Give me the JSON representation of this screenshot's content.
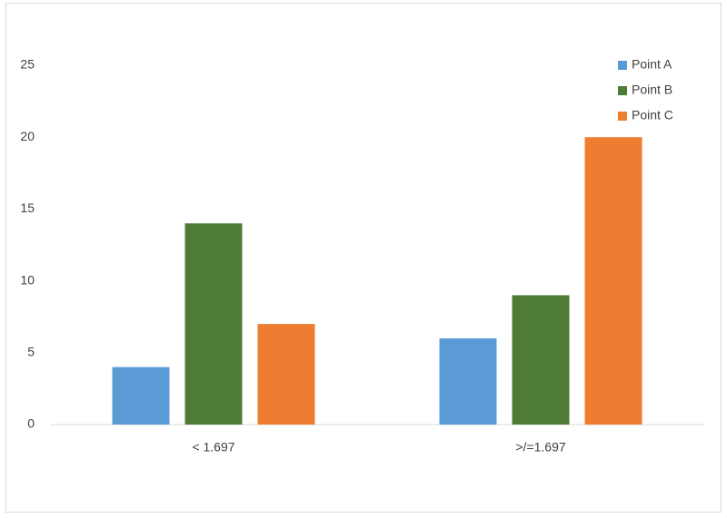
{
  "chart_data": {
    "type": "bar",
    "categories": [
      "< 1.697",
      ">/=1.697"
    ],
    "series": [
      {
        "name": "Point A",
        "color": "#5b9bd5",
        "values": [
          4,
          6
        ]
      },
      {
        "name": "Point B",
        "color": "#4e7b35",
        "values": [
          14,
          9
        ]
      },
      {
        "name": "Point C",
        "color": "#ed7d31",
        "values": [
          7,
          20
        ]
      }
    ],
    "ylim": [
      0,
      25
    ],
    "yticks": [
      0,
      5,
      10,
      15,
      20,
      25
    ],
    "grid": false,
    "legend": "top-right"
  }
}
